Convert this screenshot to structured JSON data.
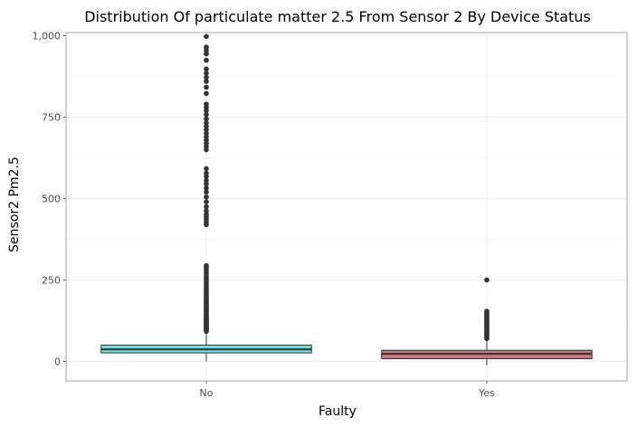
{
  "chart_data": {
    "type": "boxplot",
    "title": "Distribution Of particulate matter 2.5 From Sensor 2 By Device Status",
    "xlabel": "Faulty",
    "ylabel": "Sensor2 Pm2.5",
    "categories": [
      "No",
      "Yes"
    ],
    "ylim": [
      -60,
      1010
    ],
    "yticks": [
      0,
      250,
      500,
      750,
      1000
    ],
    "ytick_labels": [
      "0",
      "250",
      "500",
      "750",
      "1,000"
    ],
    "grid": true,
    "legend": "none",
    "boxes": [
      {
        "category": "No",
        "whisker_low": 0,
        "q1": 26,
        "median": 37,
        "q3": 50,
        "whisker_high": 90,
        "fill": "#6fdcdc",
        "outliers": [
          92,
          95,
          98,
          100,
          102,
          105,
          108,
          110,
          112,
          115,
          118,
          120,
          122,
          125,
          128,
          130,
          133,
          136,
          140,
          143,
          146,
          150,
          153,
          156,
          160,
          163,
          166,
          170,
          174,
          178,
          182,
          186,
          190,
          195,
          200,
          205,
          210,
          215,
          220,
          226,
          232,
          238,
          245,
          252,
          258,
          265,
          272,
          280,
          288,
          294,
          420,
          428,
          436,
          445,
          452,
          462,
          475,
          490,
          505,
          520,
          532,
          545,
          556,
          568,
          578,
          592,
          650,
          660,
          670,
          680,
          690,
          700,
          712,
          722,
          733,
          745,
          758,
          770,
          780,
          790,
          823,
          842,
          860,
          872,
          885,
          898,
          925,
          945,
          955,
          965,
          998
        ]
      },
      {
        "category": "Yes",
        "whisker_low": -12,
        "q1": 8,
        "median": 23,
        "q3": 34,
        "whisker_high": 68,
        "fill": "#c47a80",
        "outliers": [
          70,
          74,
          78,
          82,
          86,
          90,
          94,
          98,
          102,
          106,
          110,
          114,
          118,
          122,
          126,
          130,
          134,
          138,
          142,
          146,
          150,
          154,
          250
        ]
      }
    ],
    "colors": {
      "panel_border": "#b3b3b3",
      "grid": "#ebebeb",
      "point": "#333333",
      "box_line": "#333333"
    }
  }
}
